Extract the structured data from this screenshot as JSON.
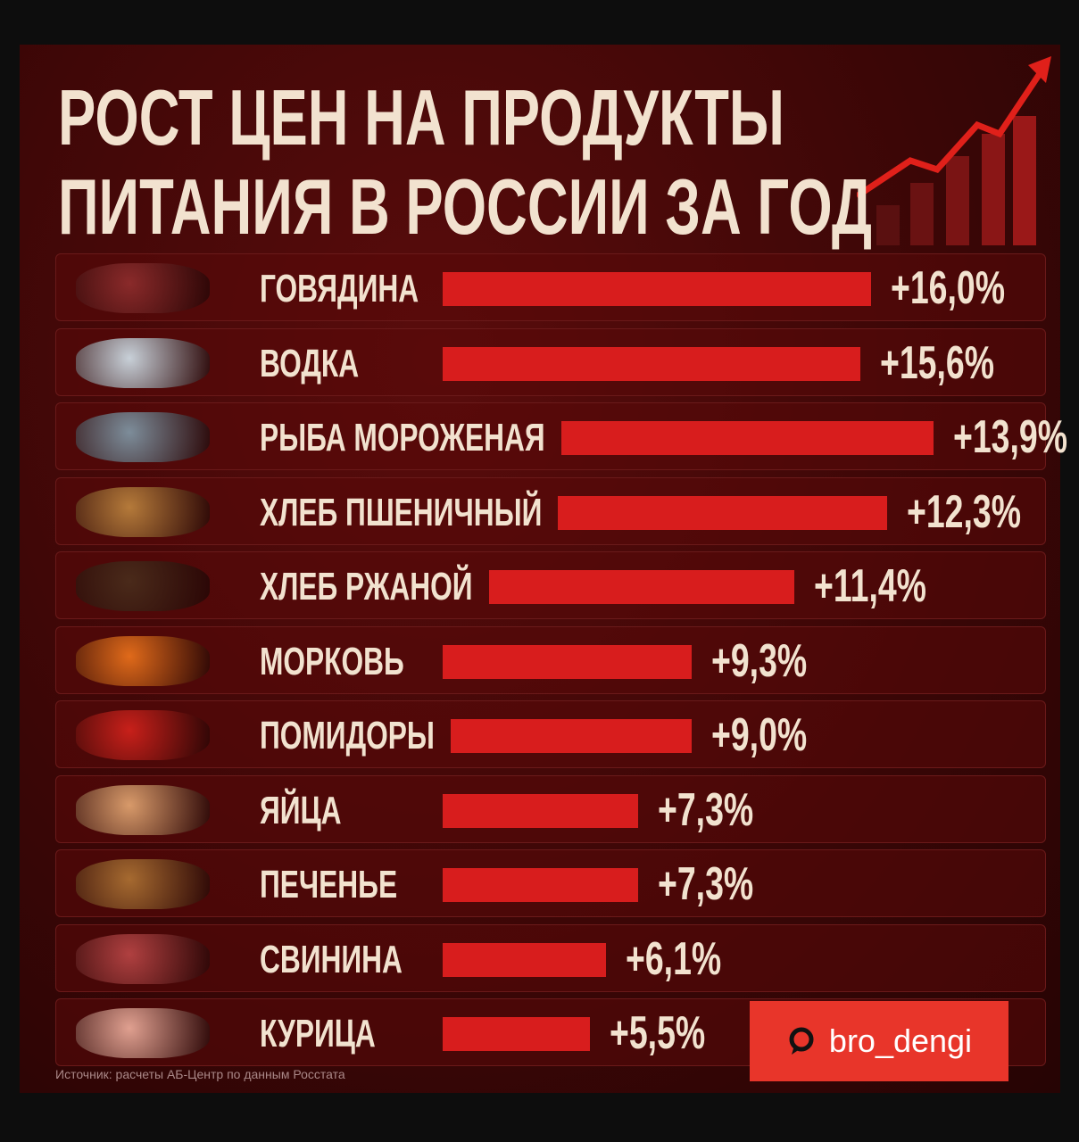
{
  "chart_data": {
    "type": "bar",
    "orientation": "horizontal",
    "title": "РОСТ ЦЕН НА ПРОДУКТЫ ПИТАНИЯ В РОССИИ ЗА ГОД",
    "categories": [
      "ГОВЯДИНА",
      "ВОДКА",
      "РЫБА МОРОЖЕНАЯ",
      "ХЛЕБ ПШЕНИЧНЫЙ",
      "ХЛЕБ РЖАНОЙ",
      "МОРКОВЬ",
      "ПОМИДОРЫ",
      "ЯЙЦА",
      "ПЕЧЕНЬЕ",
      "СВИНИНА",
      "КУРИЦА"
    ],
    "values": [
      16.0,
      15.6,
      13.9,
      12.3,
      11.4,
      9.3,
      9.0,
      7.3,
      7.3,
      6.1,
      5.5
    ],
    "value_labels": [
      "+16,0%",
      "+15,6%",
      "+13,9%",
      "+12,3%",
      "+11,4%",
      "+9,3%",
      "+9,0%",
      "+7,3%",
      "+7,3%",
      "+6,1%",
      "+5,5%"
    ],
    "color": "#d81d1d",
    "source": "Источник: расчеты АБ-Центр по данным Росстата",
    "watermark": "bro_dengi"
  }
}
